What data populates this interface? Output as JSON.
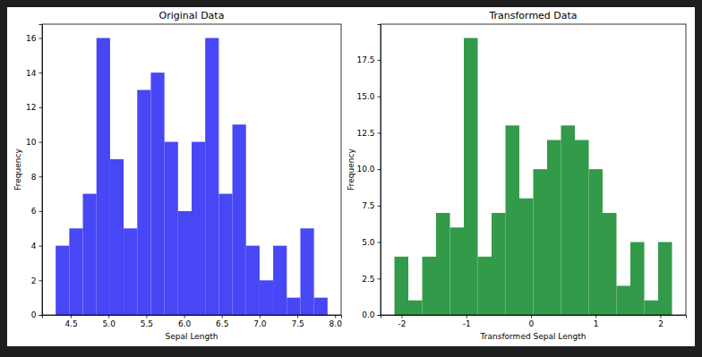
{
  "chart_data": [
    {
      "type": "histogram",
      "title": "Original Data",
      "x_label": "Sepal Length",
      "y_label": "Frequency",
      "bins": [
        4.3,
        4.48,
        4.66,
        4.84,
        5.02,
        5.2,
        5.38,
        5.56,
        5.74,
        5.92,
        6.1,
        6.28,
        6.46,
        6.64,
        6.82,
        7.0,
        7.18,
        7.36,
        7.54,
        7.72,
        7.9
      ],
      "counts": [
        4,
        5,
        7,
        16,
        9,
        5,
        13,
        14,
        10,
        6,
        10,
        16,
        7,
        11,
        4,
        2,
        4,
        1,
        5,
        1
      ],
      "color": "#4747f5",
      "xlim": [
        4.12,
        8.08
      ],
      "ylim": [
        0,
        16.8
      ],
      "xticks": [
        4.5,
        {
          "value": 5.0,
          "label": "5.0"
        },
        5.5,
        {
          "value": 6.0,
          "label": "6.0"
        },
        6.5,
        {
          "value": 7.0,
          "label": "7.0"
        },
        7.5,
        {
          "value": 8.0,
          "label": "8.0"
        }
      ],
      "yticks": [
        0,
        2,
        4,
        6,
        8,
        10,
        12,
        14,
        16
      ]
    },
    {
      "type": "histogram",
      "title": "Transformed Data",
      "x_label": "Transformed Sepal Length",
      "y_label": "Frequency",
      "bins": [
        -2.11,
        -1.8955,
        -1.681,
        -1.4665,
        -1.252,
        -1.0375,
        -0.823,
        -0.6085,
        -0.394,
        -0.1795,
        0.035,
        0.2495,
        0.464,
        0.6785,
        0.893,
        1.1075,
        1.322,
        1.5365,
        1.751,
        1.9655,
        2.18
      ],
      "counts": [
        4,
        1,
        4,
        7,
        6,
        19,
        4,
        7,
        13,
        8,
        10,
        12,
        13,
        12,
        10,
        7,
        2,
        5,
        1,
        5
      ],
      "color": "#339a4a",
      "xlim": [
        -2.3245,
        2.3945
      ],
      "ylim": [
        0,
        19.95
      ],
      "xticks": [
        -2,
        -1,
        0,
        1,
        2
      ],
      "yticks": [
        {
          "value": 0,
          "label": "0.0"
        },
        2.5,
        {
          "value": 5,
          "label": "5.0"
        },
        7.5,
        {
          "value": 10,
          "label": "10.0"
        },
        12.5,
        {
          "value": 15,
          "label": "15.0"
        },
        17.5
      ]
    }
  ]
}
